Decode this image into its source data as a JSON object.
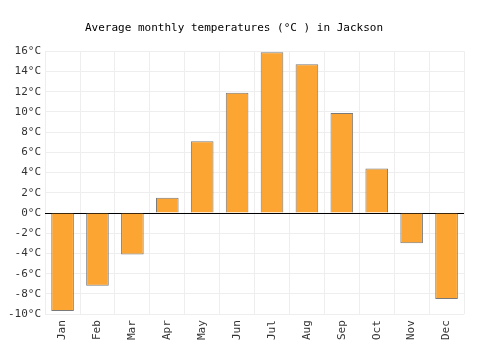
{
  "chart_data": {
    "type": "bar",
    "title": "Average monthly temperatures (°C ) in Jackson",
    "categories": [
      "Jan",
      "Feb",
      "Mar",
      "Apr",
      "May",
      "Jun",
      "Jul",
      "Aug",
      "Sep",
      "Oct",
      "Nov",
      "Dec"
    ],
    "values": [
      -9.7,
      -7.2,
      -4.1,
      1.5,
      7.1,
      11.9,
      15.9,
      14.7,
      9.9,
      4.4,
      -3.0,
      -8.5
    ],
    "color": "#fca533",
    "ylim": [
      -10,
      16
    ],
    "yticks": [
      {
        "value": -10,
        "label": "-10°C"
      },
      {
        "value": -8,
        "label": "-8°C"
      },
      {
        "value": -6,
        "label": "-6°C"
      },
      {
        "value": -4,
        "label": "-4°C"
      },
      {
        "value": -2,
        "label": "-2°C"
      },
      {
        "value": 0,
        "label": "0°C"
      },
      {
        "value": 2,
        "label": "2°C"
      },
      {
        "value": 4,
        "label": "4°C"
      },
      {
        "value": 6,
        "label": "6°C"
      },
      {
        "value": 8,
        "label": "8°C"
      },
      {
        "value": 10,
        "label": "10°C"
      },
      {
        "value": 12,
        "label": "12°C"
      },
      {
        "value": 14,
        "label": "14°C"
      },
      {
        "value": 16,
        "label": "16°C"
      }
    ],
    "grid": true
  }
}
